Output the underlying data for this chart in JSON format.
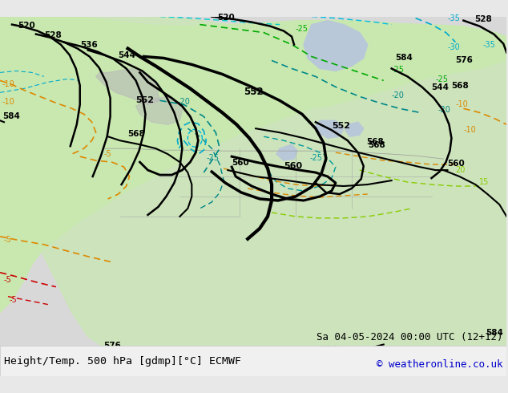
{
  "title_left": "Height/Temp. 500 hPa [gdmp][°C] ECMWF",
  "title_right": "Sa 04-05-2024 00:00 UTC (12+12)",
  "copyright": "© weatheronline.co.uk",
  "bg_color": "#e8e8e8",
  "map_bg_green": "#c8e8b0",
  "map_bg_gray": "#c0c0c0",
  "bottom_bar_color": "#f0f0f0",
  "title_font_size": 9.5,
  "copyright_font_size": 9,
  "bottom_bar_height": 0.08
}
